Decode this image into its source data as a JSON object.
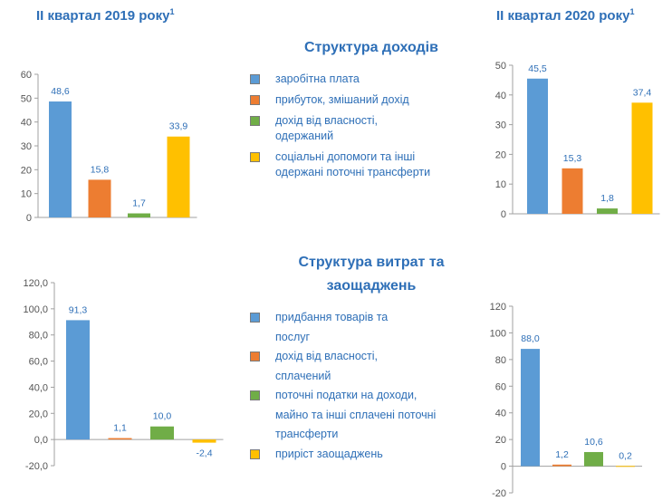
{
  "headers": {
    "left": "II квартал 2019 року",
    "right": "II квартал 2020 року",
    "footnote_mark": "1"
  },
  "income_section": {
    "title": "Структура доходів",
    "legend": [
      {
        "label": "заробітна плата",
        "color": "#5b9bd5"
      },
      {
        "label": "прибуток, змішаний дохід",
        "color": "#ed7d31"
      },
      {
        "label": "дохід від власності, одержаний",
        "color": "#70ad47"
      },
      {
        "label": "соціальні допомоги та інші одержані поточні трансферти",
        "color": "#ffc000"
      }
    ]
  },
  "expense_section": {
    "title": "Структура витрат та заощаджень",
    "legend": [
      {
        "label": "придбання товарів та послуг",
        "color": "#5b9bd5"
      },
      {
        "label": "дохід від власності, сплачений",
        "color": "#ed7d31"
      },
      {
        "label": "поточні податки на доходи, майно та інші сплачені поточні трансферти",
        "color": "#70ad47"
      },
      {
        "label": "приріст заощаджень",
        "color": "#ffc000"
      }
    ]
  },
  "chart_data": [
    {
      "type": "bar",
      "id": "income-2019",
      "categories": [
        "заробітна плата",
        "прибуток, змішаний дохід",
        "дохід від власності, одержаний",
        "соціальні допомоги та інші одержані поточні трансферти"
      ],
      "values": [
        48.6,
        15.8,
        1.7,
        33.9
      ],
      "value_labels": [
        "48,6",
        "15,8",
        "1,7",
        "33,9"
      ],
      "colors": [
        "#5b9bd5",
        "#ed7d31",
        "#70ad47",
        "#ffc000"
      ],
      "ylim": [
        0,
        60
      ],
      "ticks": [
        0,
        10,
        20,
        30,
        40,
        50,
        60
      ],
      "tick_labels": [
        "0",
        "10",
        "20",
        "30",
        "40",
        "50",
        "60"
      ],
      "grid": false
    },
    {
      "type": "bar",
      "id": "income-2020",
      "categories": [
        "заробітна плата",
        "прибуток, змішаний дохід",
        "дохід від власності, одержаний",
        "соціальні допомоги та інші одержані поточні трансферти"
      ],
      "values": [
        45.5,
        15.3,
        1.8,
        37.4
      ],
      "value_labels": [
        "45,5",
        "15,3",
        "1,8",
        "37,4"
      ],
      "colors": [
        "#5b9bd5",
        "#ed7d31",
        "#70ad47",
        "#ffc000"
      ],
      "ylim": [
        0,
        50
      ],
      "ticks": [
        0,
        10,
        20,
        30,
        40,
        50
      ],
      "tick_labels": [
        "0",
        "10",
        "20",
        "30",
        "40",
        "50"
      ],
      "grid": false
    },
    {
      "type": "bar",
      "id": "expense-2019",
      "categories": [
        "придбання товарів та послуг",
        "дохід від власності, сплачений",
        "поточні податки на доходи, майно та інші сплачені поточні трансферти",
        "приріст заощаджень"
      ],
      "values": [
        91.3,
        1.1,
        10.0,
        -2.4
      ],
      "value_labels": [
        "91,3",
        "1,1",
        "10,0",
        "-2,4"
      ],
      "colors": [
        "#5b9bd5",
        "#ed7d31",
        "#70ad47",
        "#ffc000"
      ],
      "ylim": [
        -20,
        120
      ],
      "ticks": [
        -20,
        0,
        20,
        40,
        60,
        80,
        100,
        120
      ],
      "tick_labels": [
        "-20,0",
        "0,0",
        "20,0",
        "40,0",
        "60,0",
        "80,0",
        "100,0",
        "120,0"
      ],
      "grid": false
    },
    {
      "type": "bar",
      "id": "expense-2020",
      "categories": [
        "придбання товарів та послуг",
        "дохід від власності, сплачений",
        "поточні податки на доходи, майно та інші сплачені поточні трансферти",
        "приріст заощаджень"
      ],
      "values": [
        88.0,
        1.2,
        10.6,
        0.2
      ],
      "value_labels": [
        "88,0",
        "1,2",
        "10,6",
        "0,2"
      ],
      "colors": [
        "#5b9bd5",
        "#ed7d31",
        "#70ad47",
        "#ffc000"
      ],
      "ylim": [
        -20,
        120
      ],
      "ticks": [
        -20,
        0,
        20,
        40,
        60,
        80,
        100,
        120
      ],
      "tick_labels": [
        "-20",
        "0",
        "20",
        "40",
        "60",
        "80",
        "100",
        "120"
      ],
      "grid": false
    }
  ]
}
